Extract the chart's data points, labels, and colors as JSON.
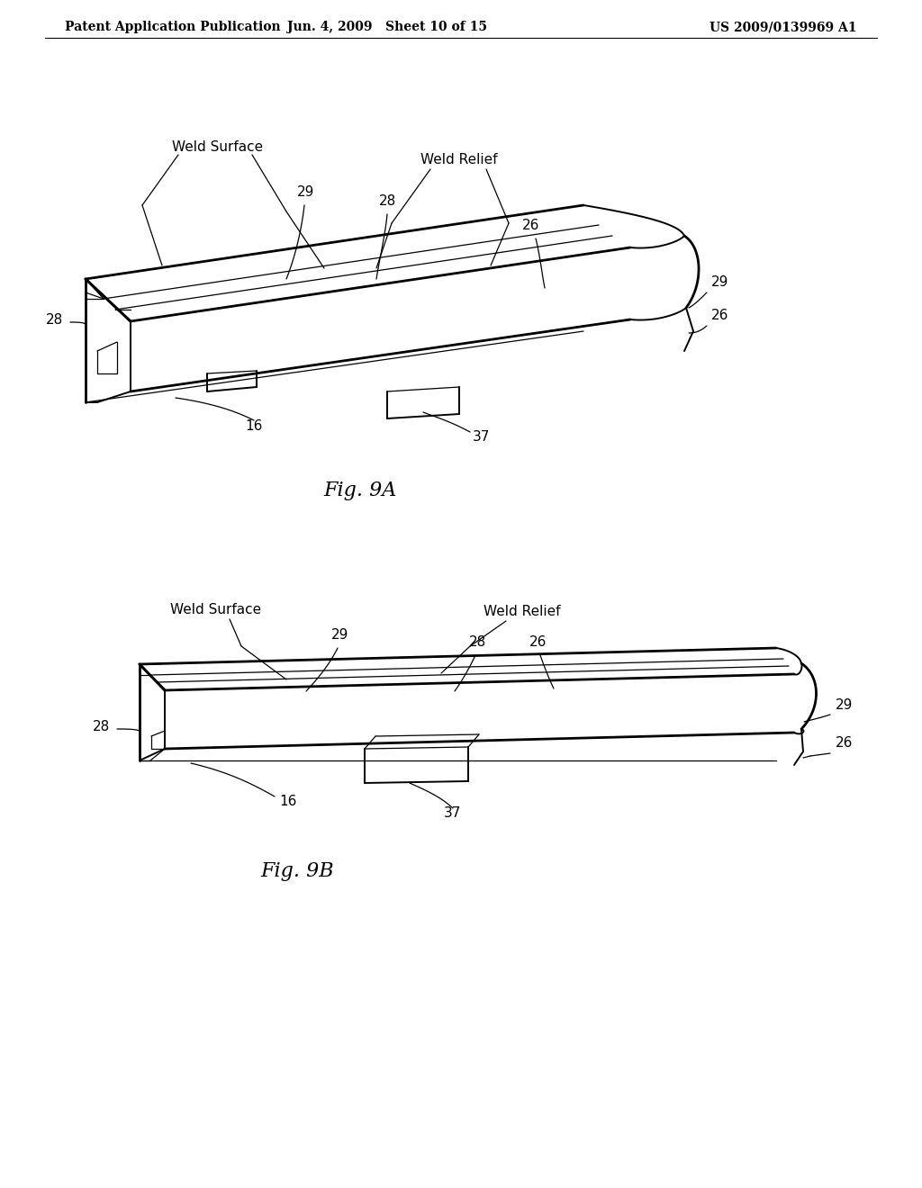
{
  "bg_color": "#ffffff",
  "header_left": "Patent Application Publication",
  "header_mid": "Jun. 4, 2009   Sheet 10 of 15",
  "header_right": "US 2009/0139969 A1",
  "fig9a_label": "Fig. 9A",
  "fig9b_label": "Fig. 9B",
  "line_color": "#000000",
  "lw_thin": 0.9,
  "lw_main": 1.4,
  "lw_thick": 2.0,
  "ann_fs": 11,
  "header_fs": 10,
  "caption_fs": 16
}
